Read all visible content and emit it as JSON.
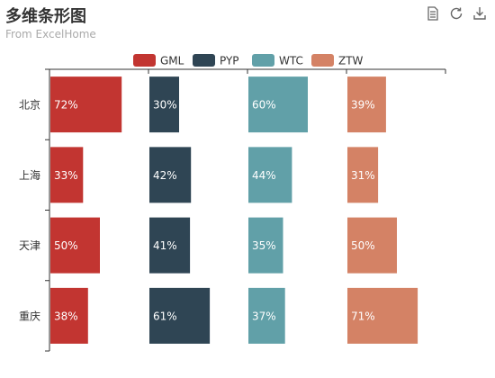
{
  "title": "多维条形图",
  "subtitle": "From ExcelHome",
  "toolbox": [
    {
      "name": "data-view-icon"
    },
    {
      "name": "restore-icon"
    },
    {
      "name": "save-image-icon"
    }
  ],
  "colors": {
    "GML": "#c23531",
    "PYP": "#2f4554",
    "WTC": "#61a0a8",
    "ZTW": "#d48265",
    "text": "#333333",
    "axis": "#333333"
  },
  "chart_data": {
    "type": "bar",
    "orientation": "horizontal",
    "title": "多维条形图",
    "subtitle": "From ExcelHome",
    "legend_position": "top-center",
    "categories": [
      "北京",
      "上海",
      "天津",
      "重庆"
    ],
    "series": [
      {
        "name": "GML",
        "values": [
          72,
          33,
          50,
          38
        ],
        "labels": [
          "72%",
          "33%",
          "50%",
          "38%"
        ]
      },
      {
        "name": "PYP",
        "values": [
          30,
          42,
          41,
          61
        ],
        "labels": [
          "30%",
          "42%",
          "41%",
          "61%"
        ]
      },
      {
        "name": "WTC",
        "values": [
          60,
          44,
          35,
          37
        ],
        "labels": [
          "60%",
          "44%",
          "35%",
          "37%"
        ]
      },
      {
        "name": "ZTW",
        "values": [
          39,
          31,
          50,
          71
        ],
        "labels": [
          "39%",
          "31%",
          "50%",
          "71%"
        ]
      }
    ],
    "xlim": [
      0,
      100
    ],
    "grid": false
  }
}
